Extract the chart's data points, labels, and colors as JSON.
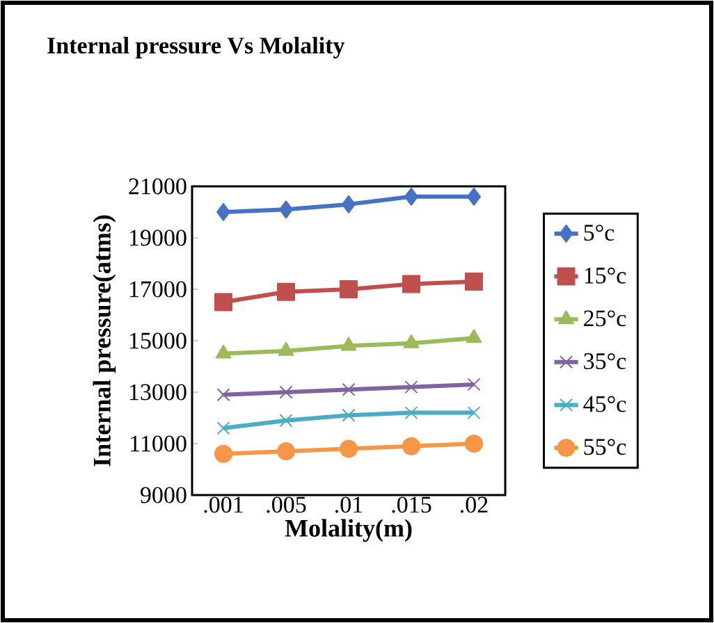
{
  "chart_data": {
    "type": "line",
    "title": "Internal pressure Vs Molality",
    "xlabel": "Molality(m)",
    "ylabel": "Internal pressure(atms)",
    "categories": [
      ".001",
      ".005",
      ".01",
      ".015",
      ".02"
    ],
    "series": [
      {
        "name": "5°c",
        "color": "#4472c4",
        "marker": "diamond",
        "values": [
          20000,
          20100,
          20300,
          20600,
          20600
        ]
      },
      {
        "name": "15°c",
        "color": "#c0504d",
        "marker": "square",
        "values": [
          16500,
          16900,
          17000,
          17200,
          17300
        ]
      },
      {
        "name": "25°c",
        "color": "#9bbb59",
        "marker": "triangle",
        "values": [
          14500,
          14600,
          14800,
          14900,
          15100
        ]
      },
      {
        "name": "35°c",
        "color": "#8064a2",
        "marker": "cross",
        "values": [
          12900,
          13000,
          13100,
          13200,
          13300
        ]
      },
      {
        "name": "45°c",
        "color": "#4bacc6",
        "marker": "cross",
        "values": [
          11600,
          11900,
          12100,
          12200,
          12200
        ]
      },
      {
        "name": "55°c",
        "color": "#f79646",
        "marker": "circle",
        "values": [
          10600,
          10700,
          10800,
          10900,
          11000
        ]
      }
    ],
    "ylim": [
      9000,
      21000
    ],
    "yticks": [
      9000,
      11000,
      13000,
      15000,
      17000,
      19000,
      21000
    ],
    "grid": false,
    "legend": "right"
  }
}
